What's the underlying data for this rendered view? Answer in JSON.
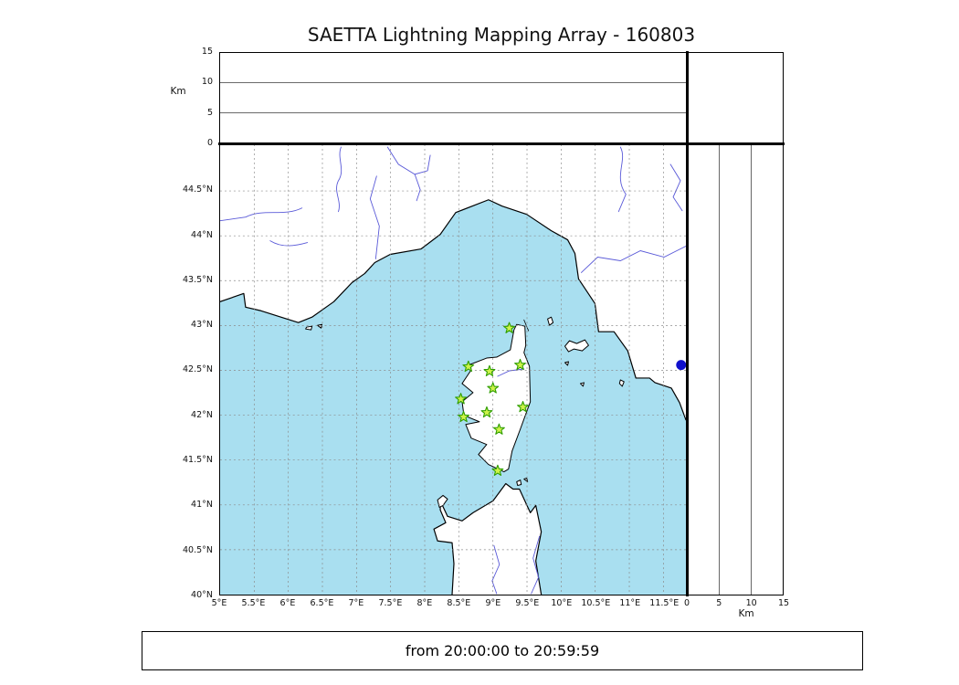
{
  "title": "SAETTA Lightning Mapping Array - 160803",
  "footer": {
    "time_range": "from 20:00:00 to 20:59:59"
  },
  "axes": {
    "altitude_label_top": "Km",
    "altitude_label_right": "Km",
    "altitude_ticks_top": [
      "15",
      "10",
      "5",
      "0"
    ],
    "altitude_ticks_right": [
      "0",
      "5",
      "10",
      "15"
    ],
    "lon_ticks": [
      "5°E",
      "5.5°E",
      "6°E",
      "6.5°E",
      "7°E",
      "7.5°E",
      "8°E",
      "8.5°E",
      "9°E",
      "9.5°E",
      "10°E",
      "10.5°E",
      "11°E",
      "11.5°E"
    ],
    "lat_ticks": [
      "44.5°N",
      "44°N",
      "43.5°N",
      "43°N",
      "42.5°N",
      "42°N",
      "41.5°N",
      "41°N",
      "40.5°N",
      "40°N"
    ]
  },
  "chart_data": {
    "type": "scatter",
    "title": "SAETTA Lightning Mapping Array - 160803",
    "time_window": "from 20:00:00 to 20:59:59",
    "map": {
      "lon_range": [
        5,
        11.83
      ],
      "lat_range": [
        40,
        45.02
      ],
      "tick_step_deg": 0.5,
      "grid": "dashed"
    },
    "altitude_panels": {
      "range_km": [
        0,
        15
      ],
      "gridlines_km": [
        5,
        10
      ],
      "unit": "Km",
      "points": []
    },
    "stations": [
      {
        "lon": 9.24,
        "lat": 42.97
      },
      {
        "lon": 8.64,
        "lat": 42.54
      },
      {
        "lon": 8.95,
        "lat": 42.49
      },
      {
        "lon": 9.4,
        "lat": 42.56
      },
      {
        "lon": 9.0,
        "lat": 42.3
      },
      {
        "lon": 8.53,
        "lat": 42.18
      },
      {
        "lon": 8.57,
        "lat": 41.98
      },
      {
        "lon": 8.91,
        "lat": 42.03
      },
      {
        "lon": 9.44,
        "lat": 42.09
      },
      {
        "lon": 9.09,
        "lat": 41.84
      },
      {
        "lon": 9.07,
        "lat": 41.38
      }
    ],
    "station_marker": {
      "shape": "star",
      "fill": "#cdf24a",
      "stroke": "#2f9e00"
    },
    "extra_marker": {
      "shape": "circle",
      "color": "#1010cc",
      "lon": 11.76,
      "lat": 42.56
    }
  },
  "colors": {
    "sea": "#a9dff0",
    "land": "#ffffff",
    "coast": "#000000",
    "rivers": "#5959d8",
    "gridline": "#8a8a8a"
  }
}
